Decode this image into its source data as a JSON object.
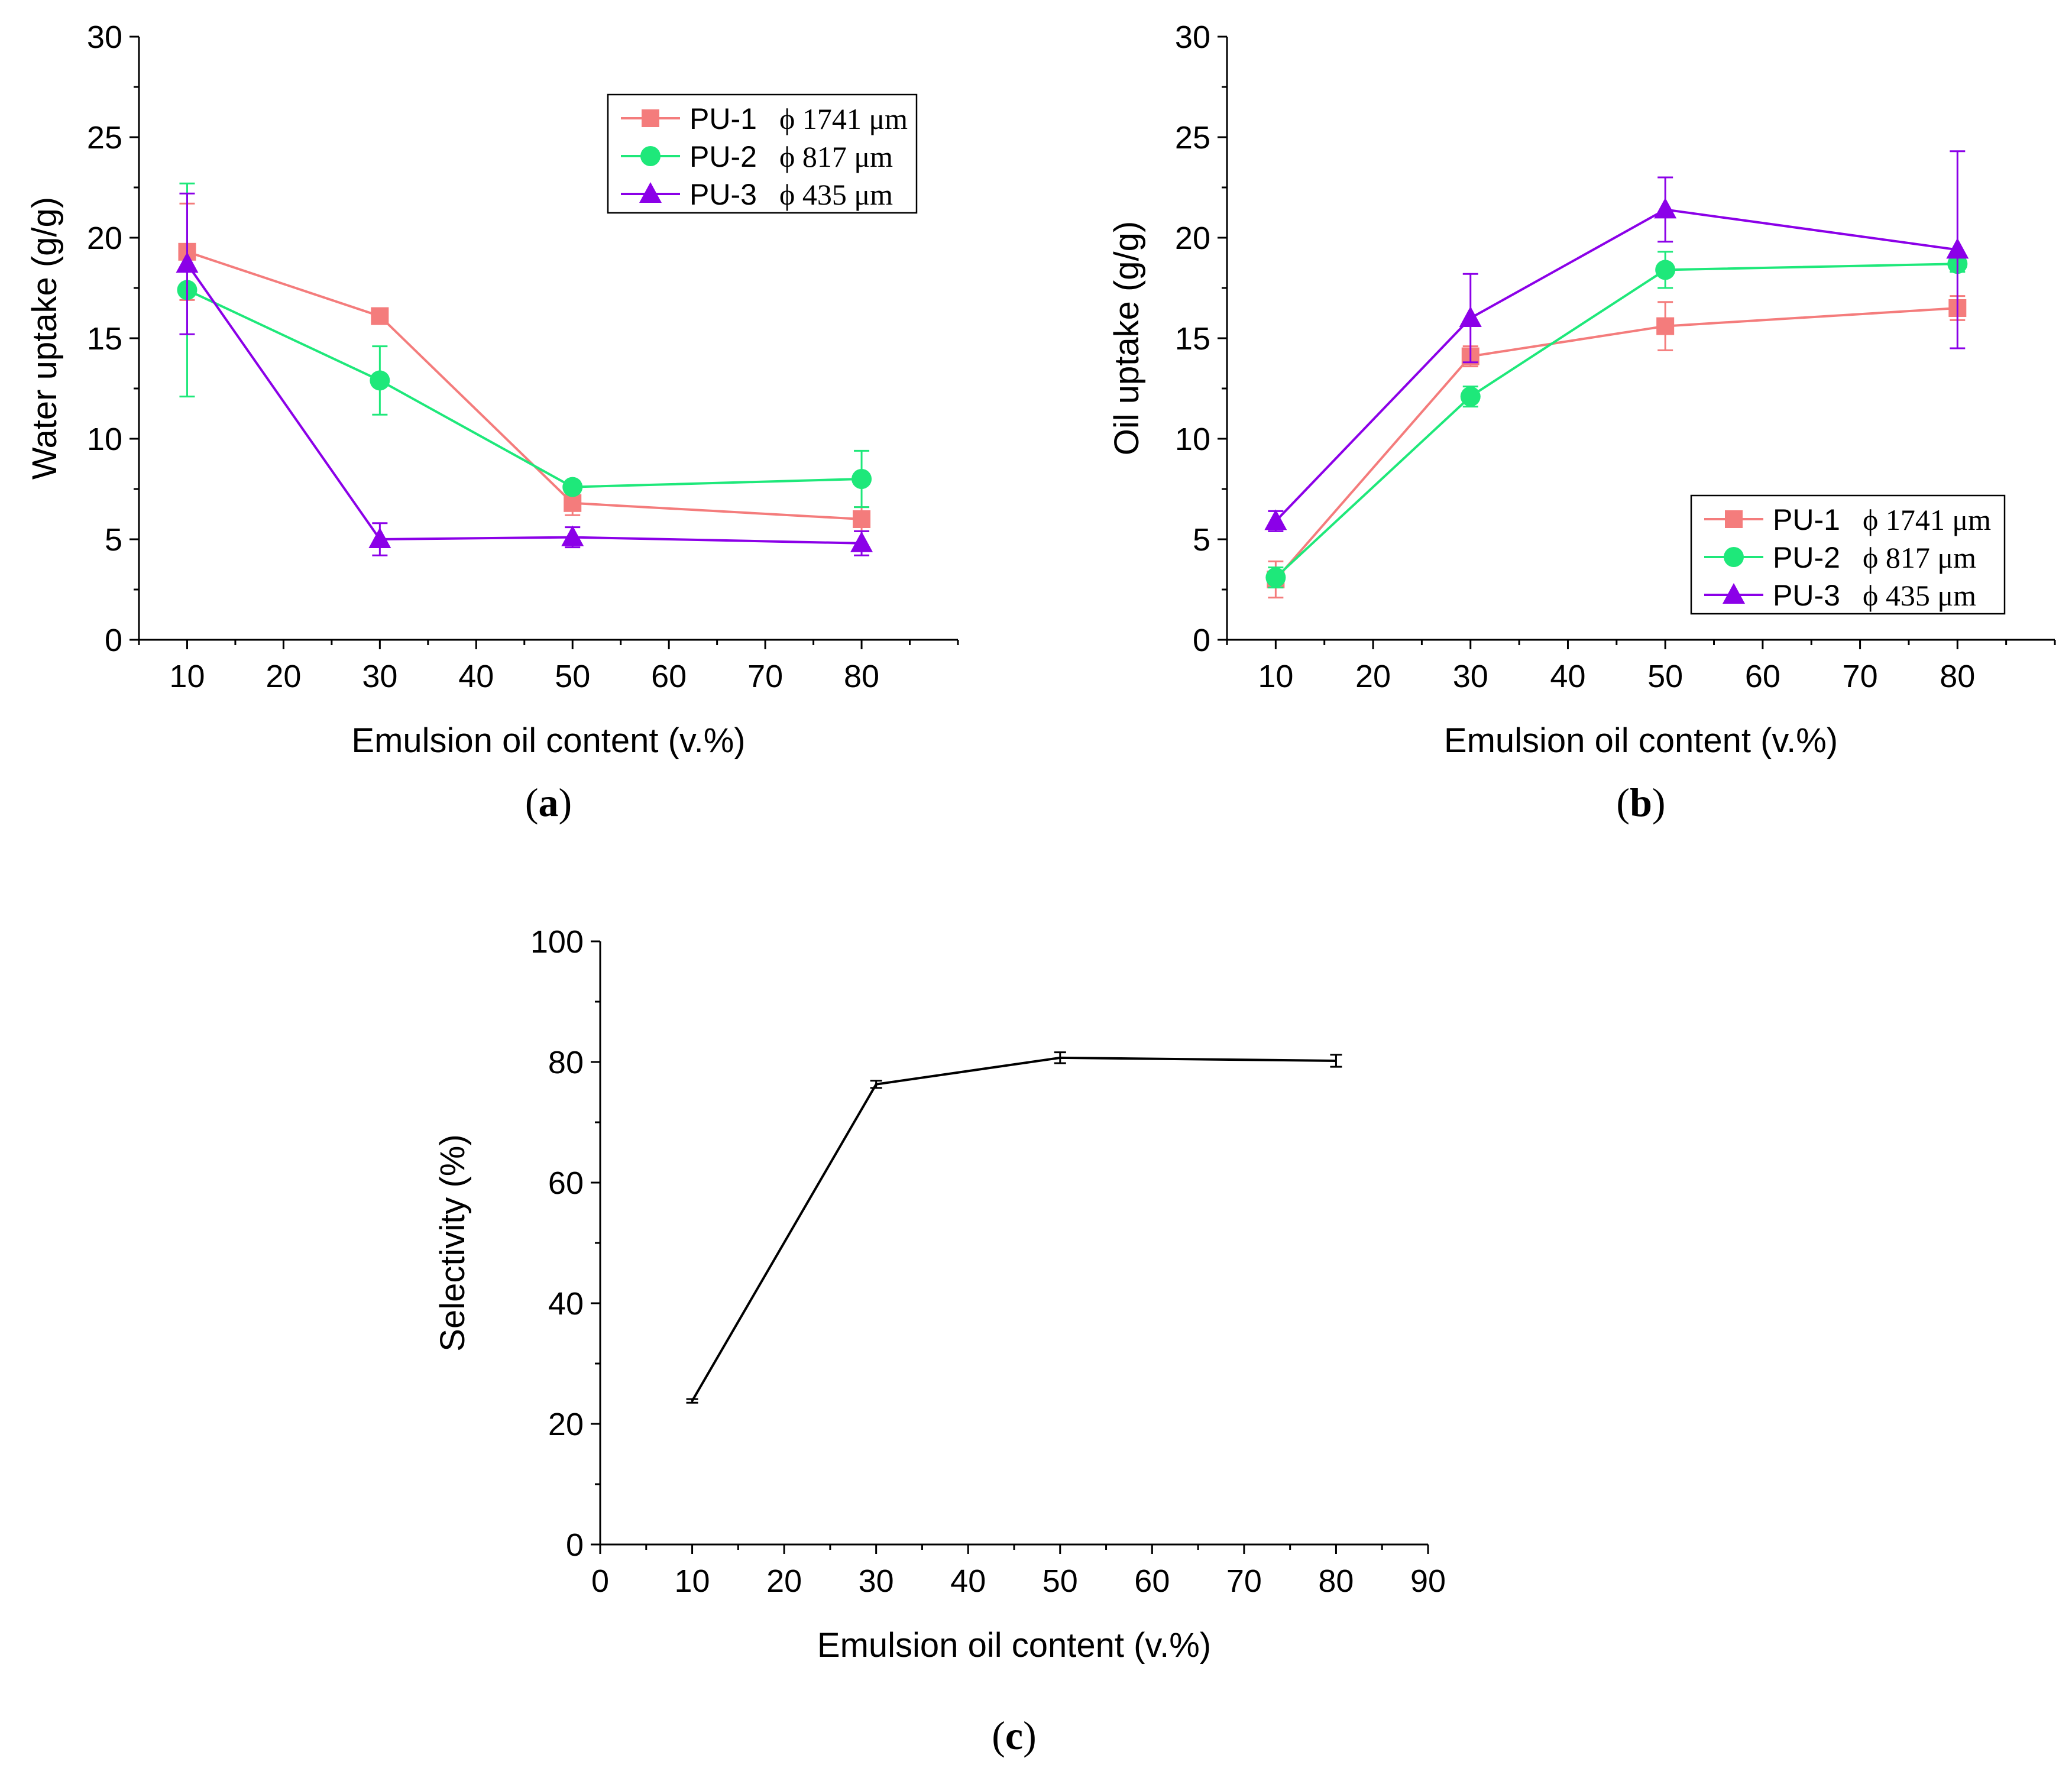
{
  "chart_data": [
    {
      "type": "line",
      "panel_label": "a",
      "xlabel": "Emulsion oil content (v.%)",
      "ylabel": "Water uptake (g/g)",
      "xlim": [
        5,
        90
      ],
      "ylim": [
        0,
        30
      ],
      "x_ticks": [
        10,
        20,
        30,
        40,
        50,
        60,
        70,
        80
      ],
      "y_ticks": [
        0,
        5,
        10,
        15,
        20,
        25,
        30
      ],
      "legend_position": "top-right",
      "x": [
        10,
        30,
        50,
        80
      ],
      "series": [
        {
          "name": "PU-1",
          "diameter": "ϕ 1741 μm",
          "color": "#f47c7c",
          "marker": "square",
          "values": [
            19.3,
            16.1,
            6.8,
            6.0
          ],
          "errors": [
            2.4,
            0.3,
            0.6,
            0.6
          ]
        },
        {
          "name": "PU-2",
          "diameter": "ϕ 817 μm",
          "color": "#1ee87a",
          "marker": "circle",
          "values": [
            17.4,
            12.9,
            7.6,
            8.0
          ],
          "errors": [
            5.3,
            1.7,
            0.3,
            1.4
          ]
        },
        {
          "name": "PU-3",
          "diameter": "ϕ 435 μm",
          "color": "#8b00e8",
          "marker": "triangle",
          "values": [
            18.7,
            5.0,
            5.1,
            4.8
          ],
          "errors": [
            3.5,
            0.8,
            0.5,
            0.6
          ]
        }
      ]
    },
    {
      "type": "line",
      "panel_label": "b",
      "xlabel": "Emulsion oil content (v.%)",
      "ylabel": "Oil uptake (g/g)",
      "xlim": [
        5,
        90
      ],
      "ylim": [
        0,
        30
      ],
      "x_ticks": [
        10,
        20,
        30,
        40,
        50,
        60,
        70,
        80
      ],
      "y_ticks": [
        0,
        5,
        10,
        15,
        20,
        25,
        30
      ],
      "legend_position": "bottom-right",
      "x": [
        10,
        30,
        50,
        80
      ],
      "series": [
        {
          "name": "PU-1",
          "diameter": "ϕ 1741 μm",
          "color": "#f47c7c",
          "marker": "square",
          "values": [
            3.0,
            14.1,
            15.6,
            16.5
          ],
          "errors": [
            0.9,
            0.5,
            1.2,
            0.6
          ]
        },
        {
          "name": "PU-2",
          "diameter": "ϕ 817 μm",
          "color": "#1ee87a",
          "marker": "circle",
          "values": [
            3.1,
            12.1,
            18.4,
            18.7
          ],
          "errors": [
            0.5,
            0.5,
            0.9,
            0.4
          ]
        },
        {
          "name": "PU-3",
          "diameter": "ϕ 435 μm",
          "color": "#8b00e8",
          "marker": "triangle",
          "values": [
            5.9,
            16.0,
            21.4,
            19.4
          ],
          "errors": [
            0.5,
            2.2,
            1.6,
            4.9
          ]
        }
      ]
    },
    {
      "type": "line",
      "panel_label": "c",
      "xlabel": "Emulsion oil content (v.%)",
      "ylabel": "Selectivity (%)",
      "xlim": [
        0,
        90
      ],
      "ylim": [
        0,
        100
      ],
      "x_ticks": [
        0,
        10,
        20,
        30,
        40,
        50,
        60,
        70,
        80,
        90
      ],
      "y_ticks": [
        0,
        20,
        40,
        60,
        80,
        100
      ],
      "x": [
        10,
        30,
        50,
        80
      ],
      "series": [
        {
          "color": "#000000",
          "marker": "none",
          "values": [
            23.8,
            76.3,
            80.7,
            80.2
          ],
          "errors": [
            0.3,
            0.6,
            0.9,
            1.0
          ]
        }
      ]
    }
  ]
}
